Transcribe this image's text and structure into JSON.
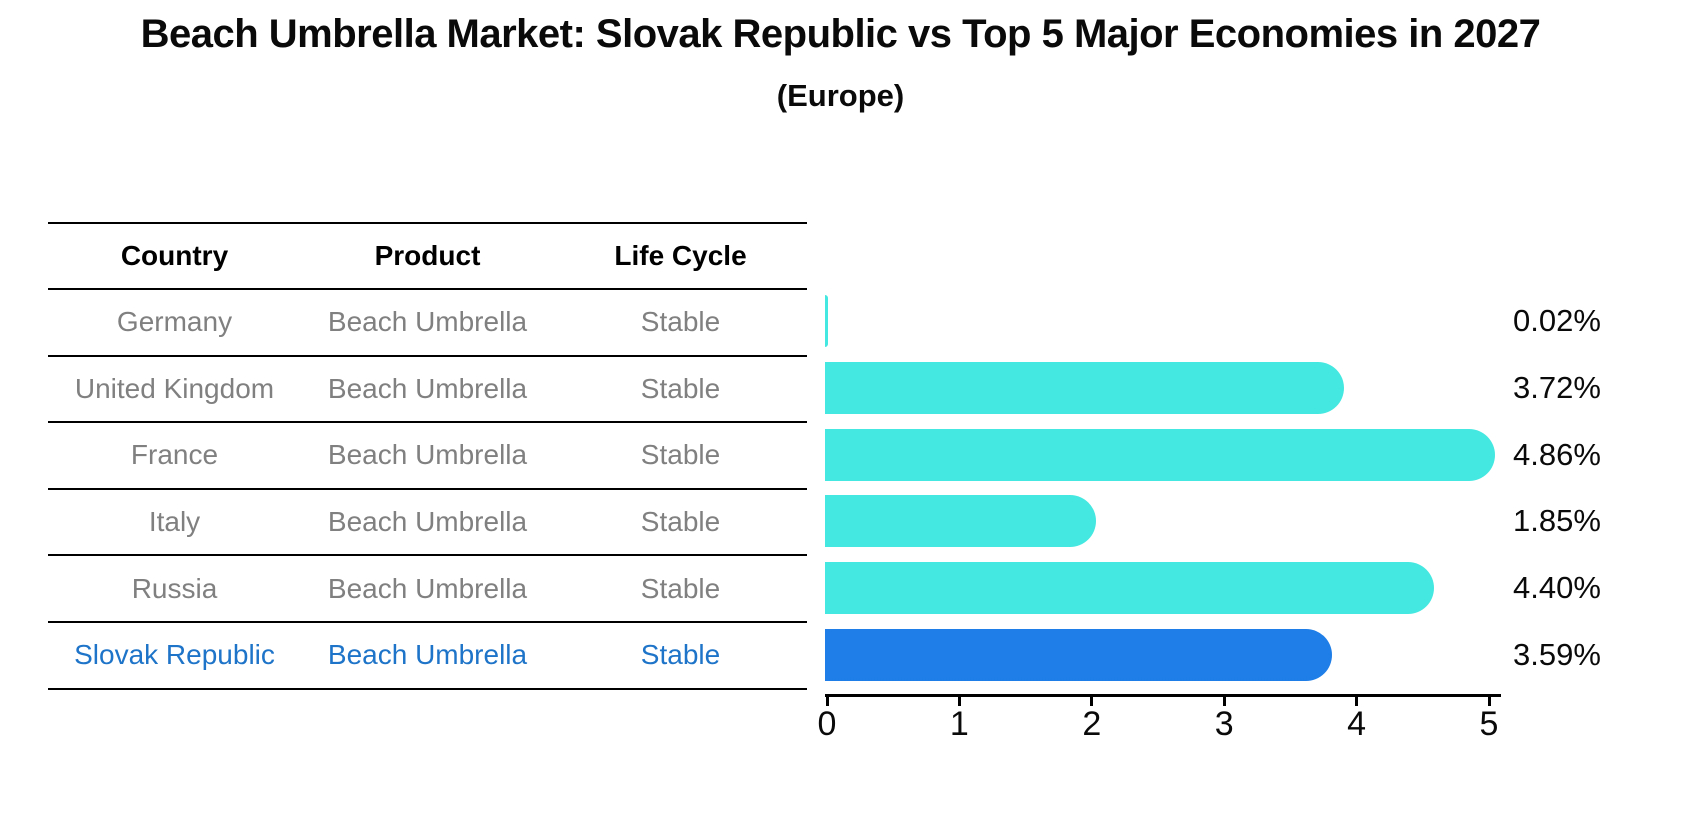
{
  "title": "Beach Umbrella Market: Slovak Republic vs Top 5 Major Economies in 2027",
  "subtitle": "(Europe)",
  "table": {
    "columns": [
      "Country",
      "Product",
      "Life Cycle"
    ],
    "header_text_color": "#000000",
    "row_text_color": "#808080",
    "highlight_text_color": "#1e74c8",
    "rows": [
      {
        "country": "Germany",
        "product": "Beach Umbrella",
        "life_cycle": "Stable",
        "highlight": false
      },
      {
        "country": "United Kingdom",
        "product": "Beach Umbrella",
        "life_cycle": "Stable",
        "highlight": false
      },
      {
        "country": "France",
        "product": "Beach Umbrella",
        "life_cycle": "Stable",
        "highlight": false
      },
      {
        "country": "Italy",
        "product": "Beach Umbrella",
        "life_cycle": "Stable",
        "highlight": false
      },
      {
        "country": "Russia",
        "product": "Beach Umbrella",
        "life_cycle": "Stable",
        "highlight": false
      },
      {
        "country": "Slovak Republic",
        "product": "Beach Umbrella",
        "life_cycle": "Stable",
        "highlight": true
      }
    ]
  },
  "chart_data": {
    "type": "bar",
    "orientation": "horizontal",
    "title": "Beach Umbrella Market: Slovak Republic vs Top 5 Major Economies in 2027",
    "subtitle": "(Europe)",
    "categories": [
      "Germany",
      "United Kingdom",
      "France",
      "Italy",
      "Russia",
      "Slovak Republic"
    ],
    "values": [
      0.02,
      3.72,
      4.86,
      1.85,
      4.4,
      3.59
    ],
    "value_labels": [
      "0.02%",
      "3.72%",
      "4.86%",
      "1.85%",
      "4.40%",
      "3.59%"
    ],
    "x_ticks": [
      "0",
      "1",
      "2",
      "3",
      "4",
      "5"
    ],
    "xlim": [
      0,
      5.1
    ],
    "grid": false,
    "legend": "none",
    "bar_color": "#45e8e0",
    "highlight_color": "#1f7ee8",
    "highlight_index": 5,
    "highlight_border_style": "dotted"
  }
}
